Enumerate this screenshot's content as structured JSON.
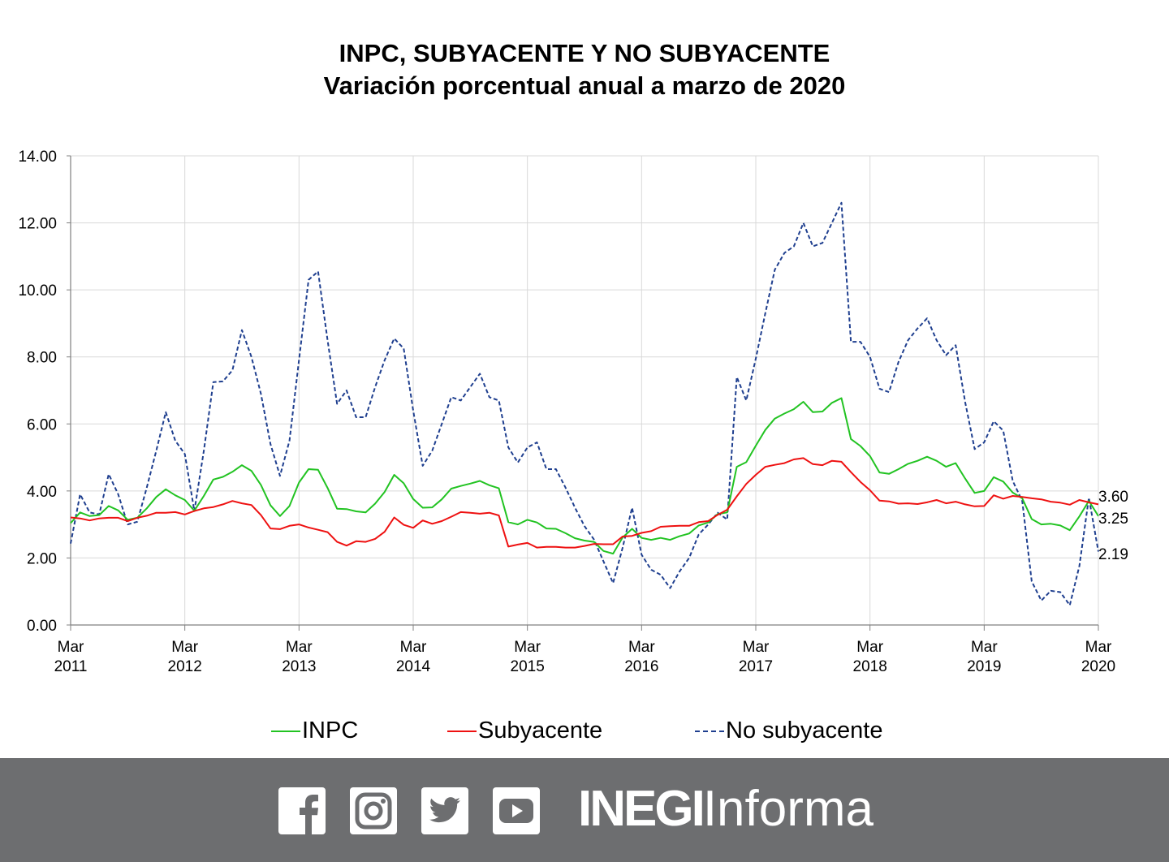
{
  "title": "INPC, SUBYACENTE Y NO SUBYACENTE",
  "subtitle": "Variación porcentual anual a marzo de 2020",
  "chart_data": {
    "type": "line",
    "title": "INPC, SUBYACENTE Y NO SUBYACENTE",
    "subtitle": "Variación porcentual anual a marzo de 2020",
    "ylim": [
      0,
      14
    ],
    "yticks": [
      "0.00",
      "2.00",
      "4.00",
      "6.00",
      "8.00",
      "10.00",
      "12.00",
      "14.00"
    ],
    "xticks": [
      [
        "Mar",
        "2011"
      ],
      [
        "Mar",
        "2012"
      ],
      [
        "Mar",
        "2013"
      ],
      [
        "Mar",
        "2014"
      ],
      [
        "Mar",
        "2015"
      ],
      [
        "Mar",
        "2016"
      ],
      [
        "Mar",
        "2017"
      ],
      [
        "Mar",
        "2018"
      ],
      [
        "Mar",
        "2019"
      ],
      [
        "Mar",
        "2020"
      ]
    ],
    "x_start": "2011-03",
    "x_end": "2020-03",
    "frequency": "monthly",
    "grid": true,
    "legend_position": "bottom",
    "series": [
      {
        "name": "INPC",
        "color": "#22c322",
        "style": "solid",
        "end_label": "3.25",
        "values": [
          3.04,
          3.36,
          3.25,
          3.28,
          3.55,
          3.42,
          3.14,
          3.2,
          3.48,
          3.82,
          4.05,
          3.87,
          3.73,
          3.41,
          3.85,
          4.34,
          4.42,
          4.57,
          4.77,
          4.6,
          4.18,
          3.57,
          3.25,
          3.55,
          4.25,
          4.65,
          4.63,
          4.09,
          3.47,
          3.46,
          3.39,
          3.36,
          3.62,
          3.97,
          4.48,
          4.23,
          3.76,
          3.5,
          3.51,
          3.75,
          4.07,
          4.15,
          4.22,
          4.3,
          4.17,
          4.08,
          3.07,
          3.0,
          3.14,
          3.06,
          2.88,
          2.87,
          2.74,
          2.59,
          2.52,
          2.48,
          2.21,
          2.13,
          2.61,
          2.87,
          2.6,
          2.54,
          2.6,
          2.54,
          2.65,
          2.73,
          2.97,
          3.06,
          3.31,
          3.36,
          4.72,
          4.86,
          5.35,
          5.82,
          6.16,
          6.31,
          6.44,
          6.66,
          6.35,
          6.37,
          6.63,
          6.77,
          5.55,
          5.34,
          5.04,
          4.55,
          4.51,
          4.65,
          4.81,
          4.9,
          5.02,
          4.9,
          4.72,
          4.83,
          4.37,
          3.94,
          4.0,
          4.41,
          4.28,
          3.95,
          3.78,
          3.16,
          3.0,
          3.02,
          2.97,
          2.83,
          3.24,
          3.7,
          3.25
        ]
      },
      {
        "name": "Subyacente",
        "color": "#ee1111",
        "style": "solid",
        "end_label": "3.60",
        "values": [
          3.21,
          3.18,
          3.12,
          3.18,
          3.2,
          3.2,
          3.1,
          3.2,
          3.26,
          3.35,
          3.35,
          3.37,
          3.3,
          3.4,
          3.48,
          3.52,
          3.6,
          3.7,
          3.63,
          3.58,
          3.28,
          2.88,
          2.86,
          2.96,
          3.0,
          2.91,
          2.84,
          2.77,
          2.48,
          2.37,
          2.5,
          2.48,
          2.57,
          2.78,
          3.21,
          2.99,
          2.9,
          3.12,
          3.02,
          3.1,
          3.23,
          3.37,
          3.35,
          3.32,
          3.35,
          3.27,
          2.34,
          2.4,
          2.45,
          2.31,
          2.33,
          2.33,
          2.31,
          2.31,
          2.36,
          2.42,
          2.41,
          2.41,
          2.64,
          2.66,
          2.75,
          2.8,
          2.93,
          2.95,
          2.96,
          2.96,
          3.07,
          3.1,
          3.29,
          3.44,
          3.84,
          4.21,
          4.48,
          4.72,
          4.78,
          4.83,
          4.94,
          4.98,
          4.8,
          4.77,
          4.9,
          4.87,
          4.56,
          4.27,
          4.02,
          3.71,
          3.69,
          3.62,
          3.63,
          3.61,
          3.66,
          3.73,
          3.63,
          3.68,
          3.6,
          3.54,
          3.55,
          3.87,
          3.77,
          3.85,
          3.82,
          3.78,
          3.75,
          3.68,
          3.65,
          3.59,
          3.73,
          3.66,
          3.6
        ]
      },
      {
        "name": "No subyacente",
        "color": "#1f3f8f",
        "style": "dashed",
        "end_label": "2.19",
        "values": [
          2.43,
          3.9,
          3.36,
          3.3,
          4.5,
          3.9,
          3.0,
          3.08,
          4.1,
          5.2,
          6.35,
          5.5,
          5.1,
          3.4,
          5.2,
          7.25,
          7.27,
          7.6,
          8.8,
          8.0,
          6.9,
          5.4,
          4.45,
          5.5,
          7.9,
          10.3,
          10.55,
          8.5,
          6.6,
          7.0,
          6.2,
          6.2,
          7.1,
          7.9,
          8.55,
          8.25,
          6.4,
          4.75,
          5.2,
          6.0,
          6.8,
          6.7,
          7.1,
          7.5,
          6.8,
          6.7,
          5.3,
          4.85,
          5.3,
          5.45,
          4.65,
          4.65,
          4.1,
          3.5,
          2.95,
          2.55,
          1.9,
          1.25,
          2.3,
          3.5,
          2.1,
          1.65,
          1.5,
          1.1,
          1.6,
          2.0,
          2.7,
          3.0,
          3.35,
          3.15,
          7.4,
          6.7,
          7.95,
          9.3,
          10.6,
          11.1,
          11.3,
          12.0,
          11.3,
          11.4,
          12.0,
          12.6,
          8.45,
          8.45,
          8.0,
          7.05,
          6.95,
          7.85,
          8.5,
          8.85,
          9.15,
          8.5,
          8.05,
          8.35,
          6.65,
          5.25,
          5.45,
          6.08,
          5.8,
          4.3,
          3.7,
          1.3,
          0.73,
          1.02,
          0.98,
          0.59,
          1.76,
          3.8,
          2.19
        ]
      }
    ]
  },
  "legend": [
    "INPC",
    "Subyacente",
    "No subyacente"
  ],
  "footer": {
    "social_icons": [
      "facebook-icon",
      "instagram-icon",
      "twitter-icon",
      "youtube-icon"
    ],
    "brand_bold": "INEGI",
    "brand_light": "Informa",
    "background": "#6d6e70"
  }
}
